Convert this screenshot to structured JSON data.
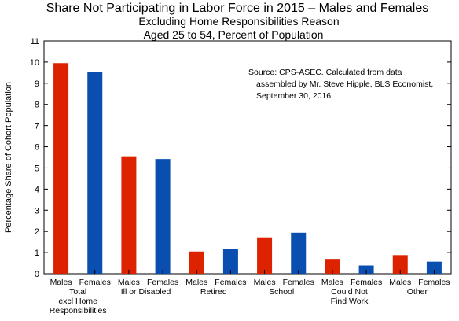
{
  "chart_data": {
    "type": "bar",
    "title": "Share Not Participating in Labor Force in 2015 – Males and Females",
    "subtitle": [
      "Excluding Home Responsibilities Reason",
      "Aged 25 to 54, Percent of Population"
    ],
    "ylabel": "Percentage Share of Cohort Population",
    "xlabel": "",
    "ylim": [
      0,
      11
    ],
    "yticks": [
      0,
      1,
      2,
      3,
      4,
      5,
      6,
      7,
      8,
      9,
      10,
      11
    ],
    "grid": false,
    "groups": [
      {
        "label_lines": [
          "Total",
          "excl Home",
          "Responsibilities"
        ]
      },
      {
        "label_lines": [
          "Ill or Disabled"
        ]
      },
      {
        "label_lines": [
          "Retired"
        ]
      },
      {
        "label_lines": [
          "School"
        ]
      },
      {
        "label_lines": [
          "Could Not",
          "Find Work"
        ]
      },
      {
        "label_lines": [
          "Other"
        ]
      }
    ],
    "series": [
      {
        "name": "Males",
        "color": "#dd2200",
        "values": [
          9.95,
          5.55,
          1.05,
          1.72,
          0.7,
          0.88
        ]
      },
      {
        "name": "Females",
        "color": "#0a4fb0",
        "values": [
          9.52,
          5.42,
          1.18,
          1.94,
          0.39,
          0.57
        ]
      }
    ],
    "annotation": [
      "Source:  CPS-ASEC.  Calculated from data",
      "assembled by Mr. Steve Hipple, BLS Economist,",
      "September 30, 2016"
    ]
  }
}
